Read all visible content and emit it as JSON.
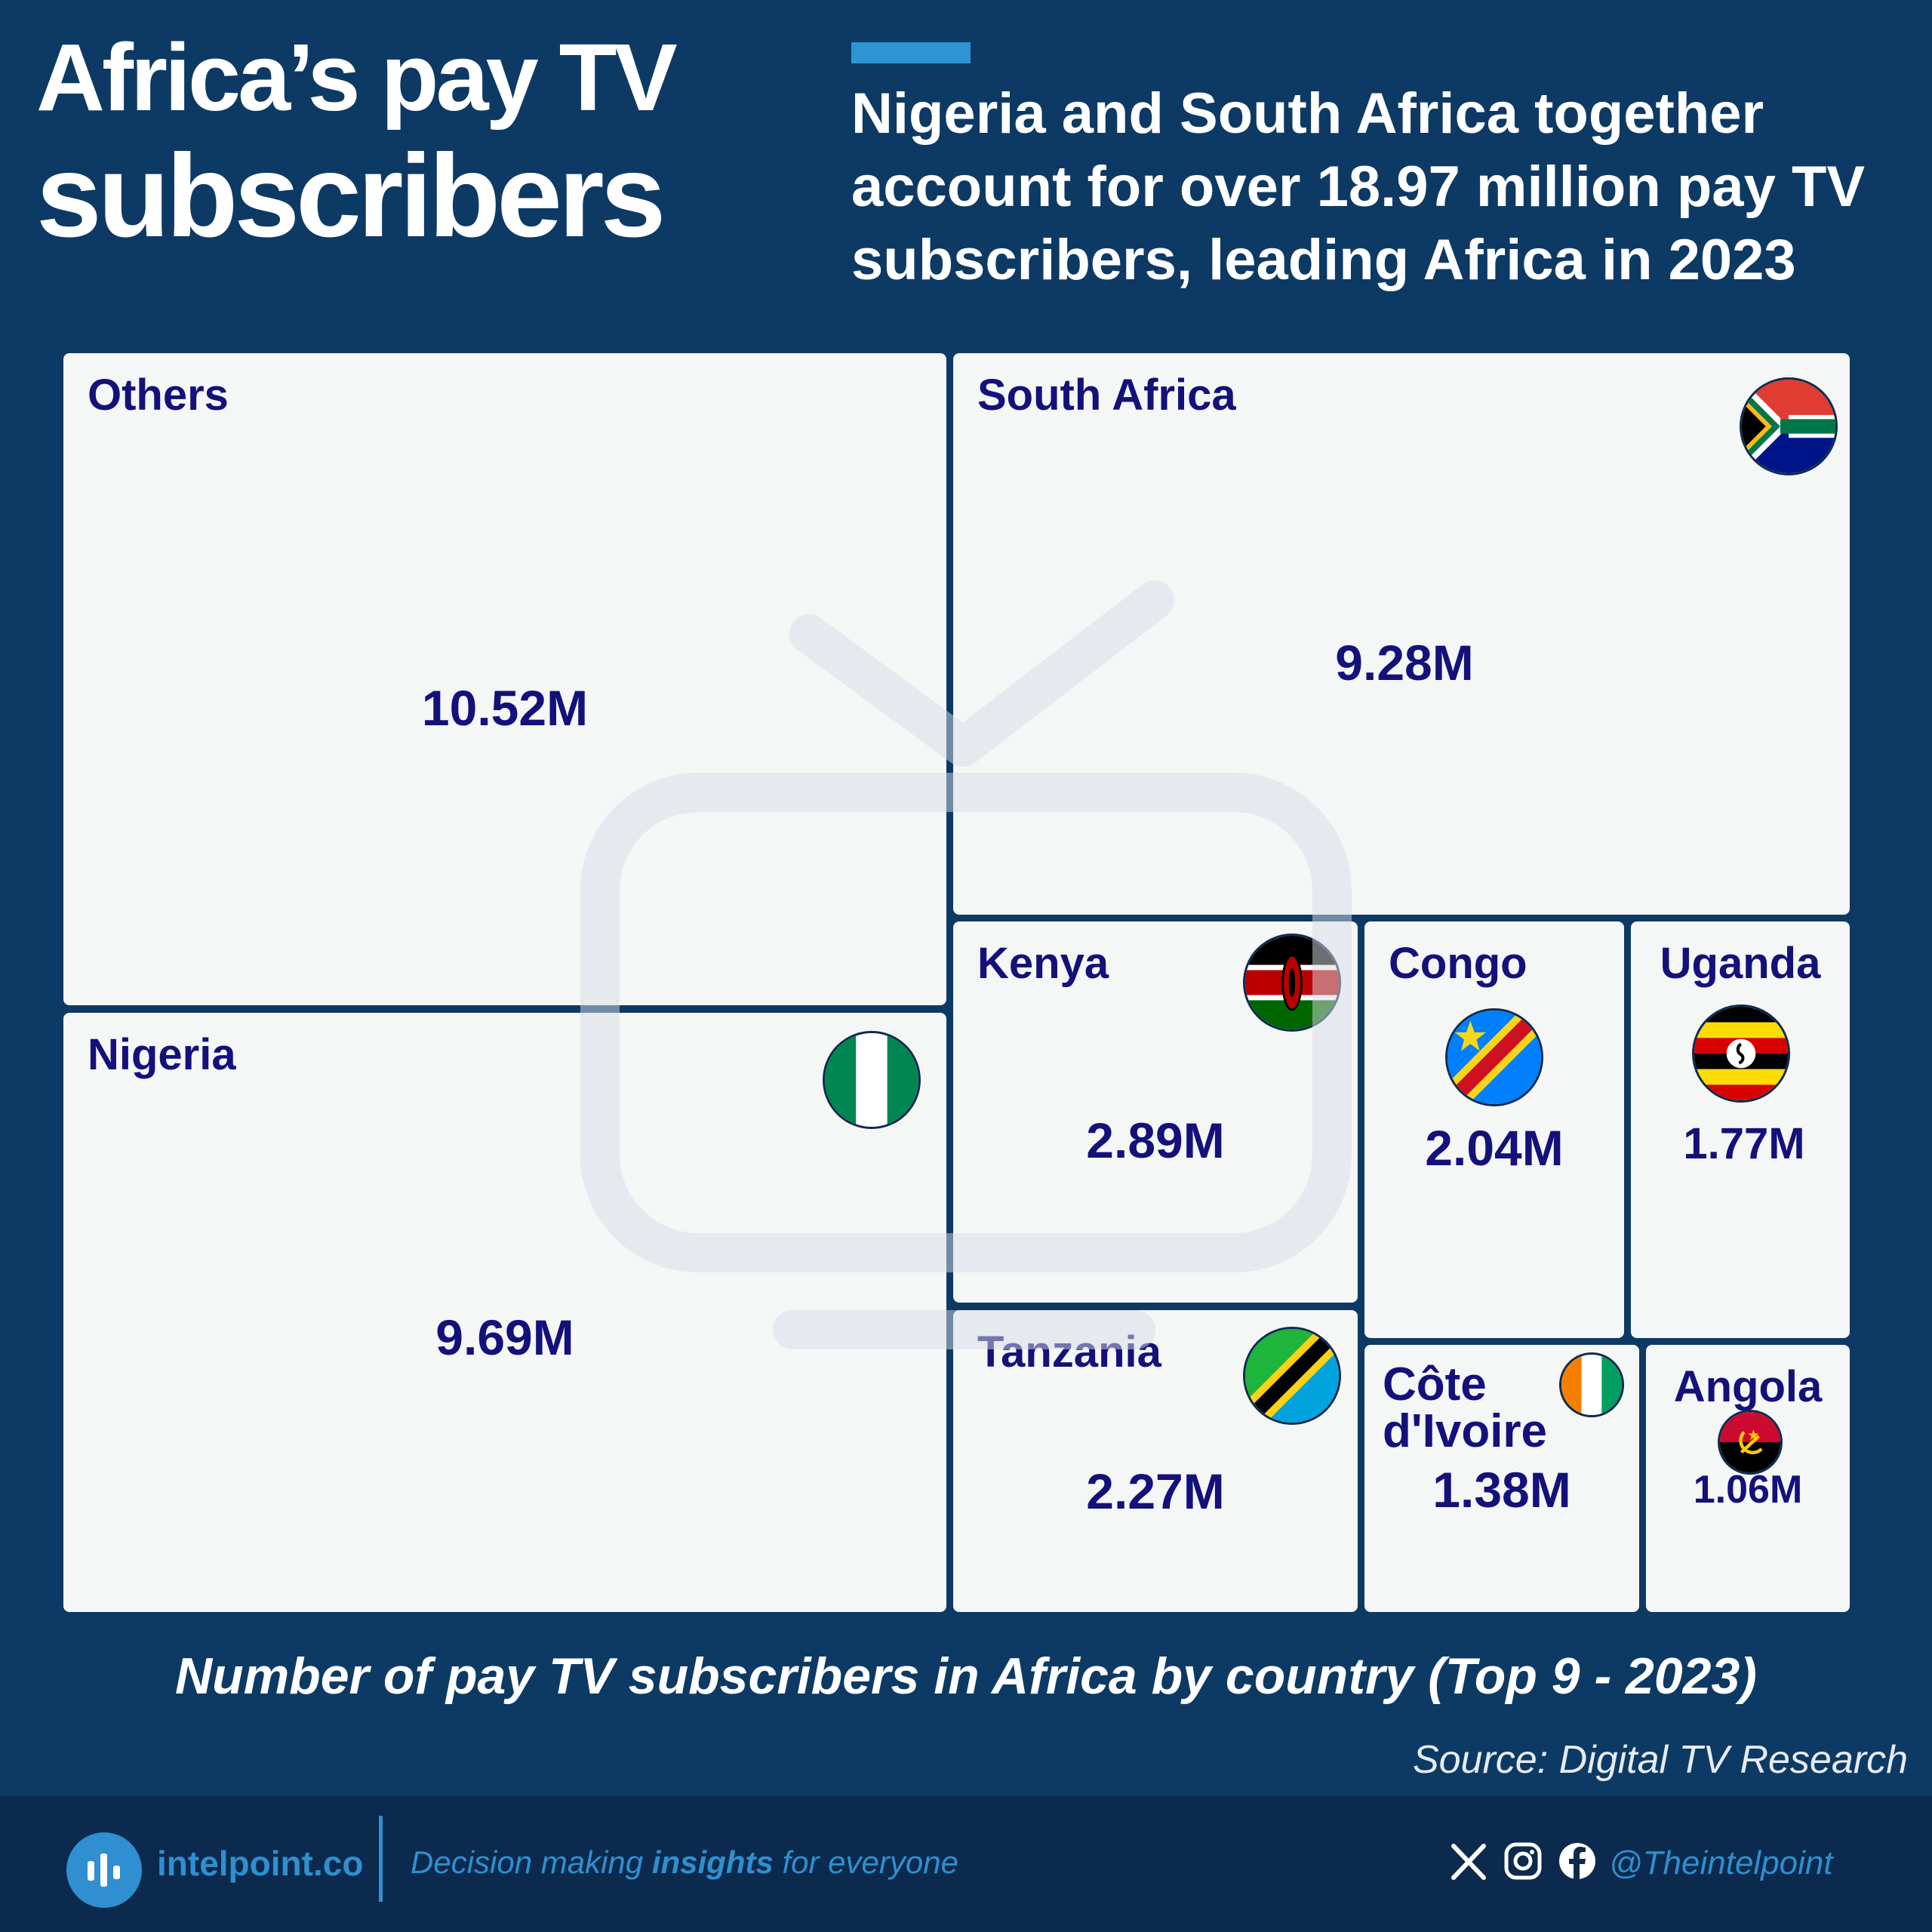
{
  "header": {
    "title_line1": "Africa’s pay TV",
    "title_line2": "subscribers",
    "subtitle": "Nigeria and South Africa together account for over 18.97 million pay TV subscribers, leading Africa in 2023"
  },
  "chart_data": {
    "type": "treemap",
    "title": "Number of pay TV subscribers in Africa by country (Top 9 - 2023)",
    "unit": "M",
    "items": [
      {
        "name": "Others",
        "value": 10.52,
        "label": "10.52M",
        "flag": "none"
      },
      {
        "name": "Nigeria",
        "value": 9.69,
        "label": "9.69M",
        "flag": "nigeria-flag"
      },
      {
        "name": "South Africa",
        "value": 9.28,
        "label": "9.28M",
        "flag": "south-africa-flag"
      },
      {
        "name": "Kenya",
        "value": 2.89,
        "label": "2.89M",
        "flag": "kenya-flag"
      },
      {
        "name": "Tanzania",
        "value": 2.27,
        "label": "2.27M",
        "flag": "tanzania-flag"
      },
      {
        "name": "Congo",
        "value": 2.04,
        "label": "2.04M",
        "flag": "congo-flag"
      },
      {
        "name": "Uganda",
        "value": 1.77,
        "label": "1.77M",
        "flag": "uganda-flag"
      },
      {
        "name": "Côte d'Ivoire",
        "value": 1.38,
        "label": "1.38M",
        "flag": "cote-divoire-flag"
      },
      {
        "name": "Angola",
        "value": 1.06,
        "label": "1.06M",
        "flag": "angola-flag"
      }
    ],
    "colors": {
      "tile": "#f5f6f6",
      "text": "#13117a",
      "background": "#0d3a64"
    }
  },
  "caption": "Number of pay TV subscribers in Africa by country (Top 9 - 2023)",
  "source": "Source: Digital TV Research",
  "footer": {
    "brand": "intelpoint.co",
    "tagline_pre": "Decision making ",
    "tagline_bold": "insights",
    "tagline_post": " for everyone",
    "handle": "@Theintelpoint",
    "social_icons": [
      "x-icon",
      "instagram-icon",
      "facebook-icon"
    ],
    "accent": "#2f8fd0"
  }
}
